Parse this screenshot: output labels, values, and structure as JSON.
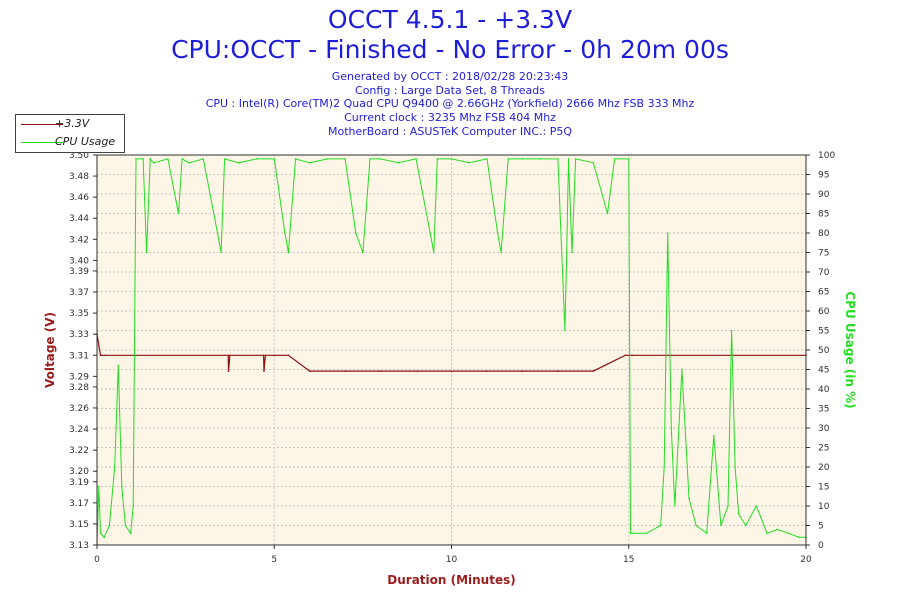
{
  "header": {
    "title": "OCCT 4.5.1 - +3.3V",
    "subtitle": "CPU:OCCT - Finished - No Error - 0h 20m 00s",
    "info_lines": [
      "Generated by OCCT : 2018/02/28 20:23:43",
      "Config : Large Data Set, 8 Threads",
      "CPU : Intel(R) Core(TM)2 Quad CPU Q9400 @ 2.66GHz (Yorkfield) 2666 Mhz FSB 333 Mhz",
      "Current clock : 3235 Mhz FSB 404 Mhz",
      "MotherBoard : ASUSTeK Computer INC.: P5Q"
    ]
  },
  "legend": {
    "items": [
      {
        "label": "+3.3V",
        "color": "#8b1010"
      },
      {
        "label": "CPU Usage",
        "color": "#22dd22"
      }
    ]
  },
  "chart_data": {
    "type": "line",
    "xlabel": "Duration (Minutes)",
    "ylabel_left": "Voltage (V)",
    "ylabel_right": "CPU Usage (in %)",
    "xlim": [
      0,
      20
    ],
    "xticks": [
      0,
      5,
      10,
      15,
      20
    ],
    "ylim_left": [
      3.13,
      3.5
    ],
    "yticks_left": [
      3.13,
      3.15,
      3.17,
      3.19,
      3.2,
      3.22,
      3.24,
      3.26,
      3.28,
      3.29,
      3.31,
      3.33,
      3.35,
      3.37,
      3.39,
      3.4,
      3.42,
      3.44,
      3.46,
      3.48,
      3.5
    ],
    "ylim_right": [
      0,
      100
    ],
    "yticks_right": [
      0,
      5,
      10,
      15,
      20,
      25,
      30,
      35,
      40,
      45,
      50,
      55,
      60,
      65,
      70,
      75,
      80,
      85,
      90,
      95,
      100
    ],
    "grid": "dashed",
    "legend_position": "top-left",
    "background": "#fdf5e6",
    "series": [
      {
        "name": "+3.3V",
        "axis": "left",
        "color": "#8b1010",
        "x": [
          0,
          0.1,
          0.11,
          0.2,
          3.7,
          3.71,
          3.75,
          4.7,
          4.71,
          4.75,
          5.0,
          5.4,
          6.0,
          7.0,
          8.0,
          9.0,
          10.0,
          11.0,
          12.0,
          13.0,
          14.0,
          14.9,
          15.0,
          15.1,
          20.0
        ],
        "values": [
          3.33,
          3.31,
          3.31,
          3.31,
          3.31,
          3.295,
          3.31,
          3.31,
          3.295,
          3.31,
          3.31,
          3.31,
          3.295,
          3.295,
          3.295,
          3.295,
          3.295,
          3.295,
          3.295,
          3.295,
          3.295,
          3.31,
          3.31,
          3.31,
          3.31
        ]
      },
      {
        "name": "CPU Usage",
        "axis": "right",
        "color": "#22dd22",
        "x": [
          0,
          0.05,
          0.1,
          0.2,
          0.35,
          0.5,
          0.6,
          0.7,
          0.8,
          0.95,
          1.02,
          1.1,
          1.3,
          1.4,
          1.5,
          1.6,
          2.0,
          2.3,
          2.4,
          2.6,
          3.0,
          3.4,
          3.5,
          3.6,
          4.0,
          4.5,
          5.0,
          5.3,
          5.4,
          5.6,
          6.0,
          6.5,
          7.0,
          7.3,
          7.5,
          7.7,
          8.0,
          8.5,
          9.0,
          9.4,
          9.5,
          9.6,
          10.0,
          10.5,
          11.0,
          11.3,
          11.4,
          11.6,
          12.0,
          12.5,
          13.0,
          13.2,
          13.25,
          13.3,
          13.4,
          13.5,
          14.0,
          14.4,
          14.6,
          15.0,
          15.05,
          15.1,
          15.5,
          15.9,
          16.0,
          16.1,
          16.2,
          16.3,
          16.5,
          16.7,
          16.9,
          17.2,
          17.4,
          17.6,
          17.8,
          17.9,
          18.0,
          18.1,
          18.3,
          18.6,
          18.9,
          19.2,
          19.5,
          19.8,
          20.0
        ],
        "values": [
          0,
          15,
          3,
          2,
          5,
          20,
          46,
          15,
          5,
          3,
          10,
          99,
          99,
          75,
          99,
          98,
          99,
          85,
          99,
          98,
          99,
          80,
          75,
          99,
          98,
          99,
          99,
          80,
          75,
          99,
          98,
          99,
          99,
          80,
          75,
          99,
          99,
          98,
          99,
          80,
          75,
          99,
          99,
          98,
          99,
          80,
          75,
          99,
          99,
          99,
          99,
          55,
          75,
          99,
          75,
          99,
          98,
          85,
          99,
          99,
          3,
          3,
          3,
          5,
          20,
          80,
          30,
          10,
          45,
          12,
          5,
          3,
          28,
          5,
          10,
          55,
          20,
          8,
          5,
          10,
          3,
          4,
          3,
          2,
          2
        ]
      }
    ]
  }
}
